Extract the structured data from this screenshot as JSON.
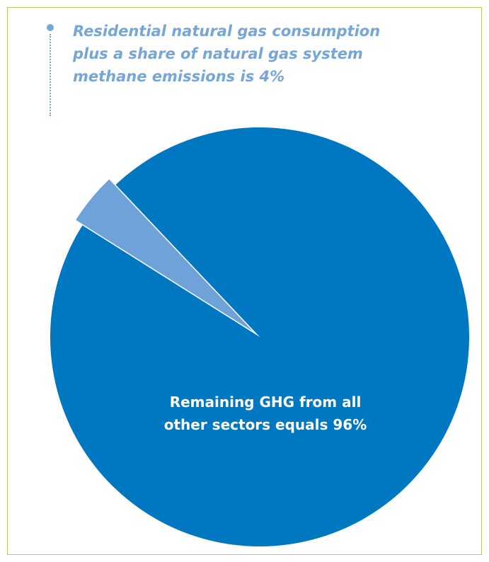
{
  "chart_data": {
    "type": "pie",
    "slices": [
      {
        "value": 4,
        "label": "4%",
        "color": "#6fa2d8",
        "exploded": true,
        "callout": "Residential natural gas consumption\nplus a share of natural gas system\nmethane emissions is 4%"
      },
      {
        "value": 96,
        "label": "Remaining GHG from all\nother sectors equals 96%",
        "color": "#0078c1",
        "exploded": false
      }
    ],
    "title": "",
    "legend": "none"
  },
  "colors": {
    "border": "#b7cb6c",
    "callout_text": "#76a5d7"
  }
}
